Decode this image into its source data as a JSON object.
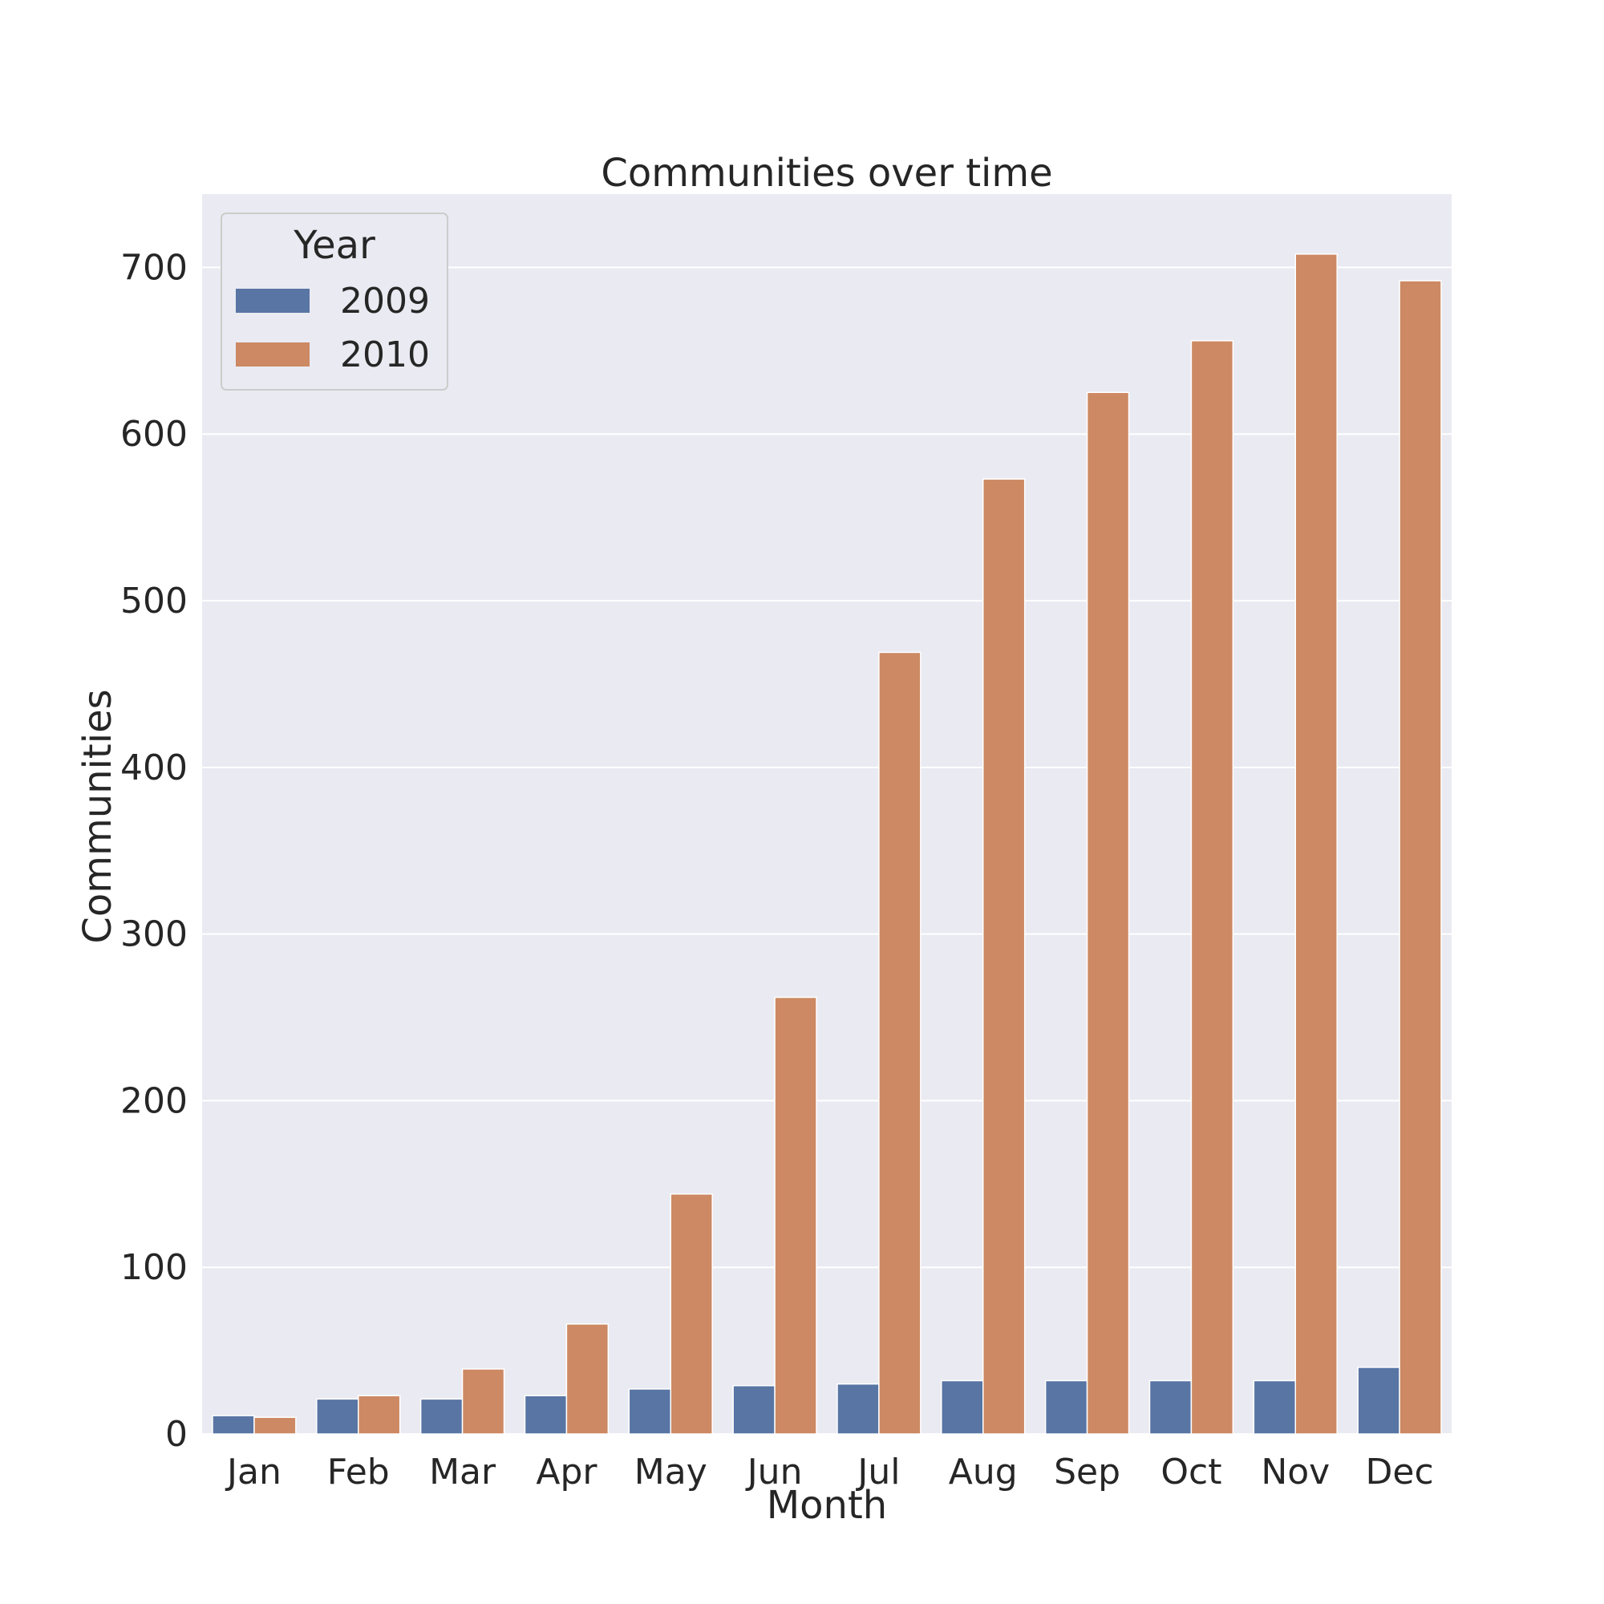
{
  "chart_data": {
    "type": "bar",
    "title": "Communities over time",
    "xlabel": "Month",
    "ylabel": "Communities",
    "categories": [
      "Jan",
      "Feb",
      "Mar",
      "Apr",
      "May",
      "Jun",
      "Jul",
      "Aug",
      "Sep",
      "Oct",
      "Nov",
      "Dec"
    ],
    "series": [
      {
        "name": "2009",
        "color": "#5875a4",
        "values": [
          11,
          21,
          21,
          23,
          27,
          29,
          30,
          32,
          32,
          32,
          32,
          40
        ]
      },
      {
        "name": "2010",
        "color": "#cc8963",
        "values": [
          10,
          23,
          39,
          66,
          144,
          262,
          469,
          573,
          625,
          656,
          708,
          692
        ]
      }
    ],
    "ylim": [
      0,
      744
    ],
    "yticks": [
      0,
      100,
      200,
      300,
      400,
      500,
      600,
      700
    ],
    "grid": true,
    "legend": {
      "title": "Year",
      "placement": "top-left"
    }
  }
}
